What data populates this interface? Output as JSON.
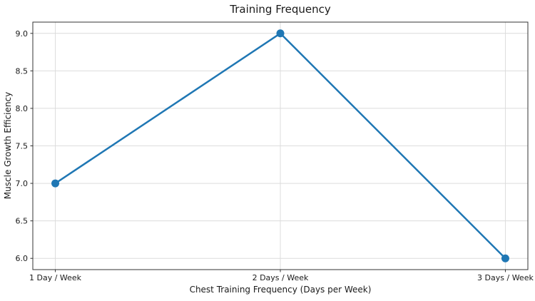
{
  "chart_data": {
    "type": "line",
    "title": "Training Frequency",
    "xlabel": "Chest Training Frequency (Days per Week)",
    "ylabel": "Muscle Growth Efficiency",
    "categories": [
      "1 Day / Week",
      "2 Days / Week",
      "3 Days / Week"
    ],
    "x": [
      1,
      2,
      3
    ],
    "series": [
      {
        "name": "Muscle Growth Efficiency",
        "values": [
          7.0,
          9.0,
          6.0
        ]
      }
    ],
    "yticks": [
      6.0,
      6.5,
      7.0,
      7.5,
      8.0,
      8.5,
      9.0
    ],
    "ytick_labels": [
      "6.0",
      "6.5",
      "7.0",
      "7.5",
      "8.0",
      "8.5",
      "9.0"
    ],
    "xlim": [
      0.9,
      3.1
    ],
    "ylim": [
      5.85,
      9.15
    ],
    "grid": true,
    "legend": "none",
    "marker": "circle",
    "colors": {
      "line": "#1f77b4",
      "marker": "#1f77b4",
      "grid": "#dcdcdc",
      "spine": "#333333",
      "text": "#1a1a1a",
      "background": "#ffffff"
    }
  }
}
